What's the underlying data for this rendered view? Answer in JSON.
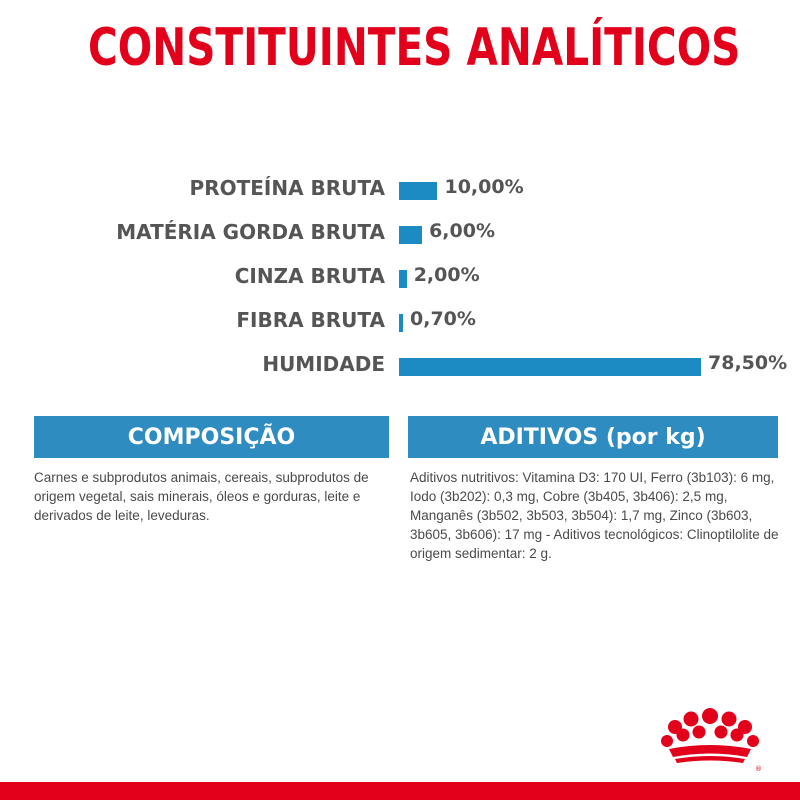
{
  "title": "CONSTITUINTES ANALÍTICOS",
  "chart_data": {
    "type": "bar",
    "categories": [
      "PROTEÍNA BRUTA",
      "MATÉRIA GORDA BRUTA",
      "CINZA BRUTA",
      "FIBRA BRUTA",
      "HUMIDADE"
    ],
    "values": [
      10.0,
      6.0,
      2.0,
      0.7,
      78.5
    ],
    "value_labels": [
      "10,00%",
      "6,00%",
      "2,00%",
      "0,70%",
      "78,50%"
    ],
    "bar_color": "#1c8bc3"
  },
  "composition": {
    "heading": "COMPOSIÇÃO",
    "text": "Carnes e subprodutos animais, cereais, subprodutos de origem vegetal, sais minerais, óleos e gorduras, leite e derivados de leite, leveduras."
  },
  "additives": {
    "heading": "ADITIVOS (por kg)",
    "text": "Aditivos nutritivos: Vitamina D3: 170 UI, Ferro (3b103): 6 mg, Iodo (3b202): 0,3 mg, Cobre (3b405, 3b406): 2,5 mg, Manganês (3b502, 3b503, 3b504): 1,7 mg, Zinco (3b603, 3b605, 3b606): 17 mg - Aditivos tecnológicos: Clinoptilolite de origem sedimentar: 2 g."
  },
  "colors": {
    "brand_red": "#e2001a",
    "header_blue": "#2e8cc0",
    "bar_blue": "#1c8bc3"
  },
  "icons": {
    "logo": "royal-canin-crown-logo"
  }
}
